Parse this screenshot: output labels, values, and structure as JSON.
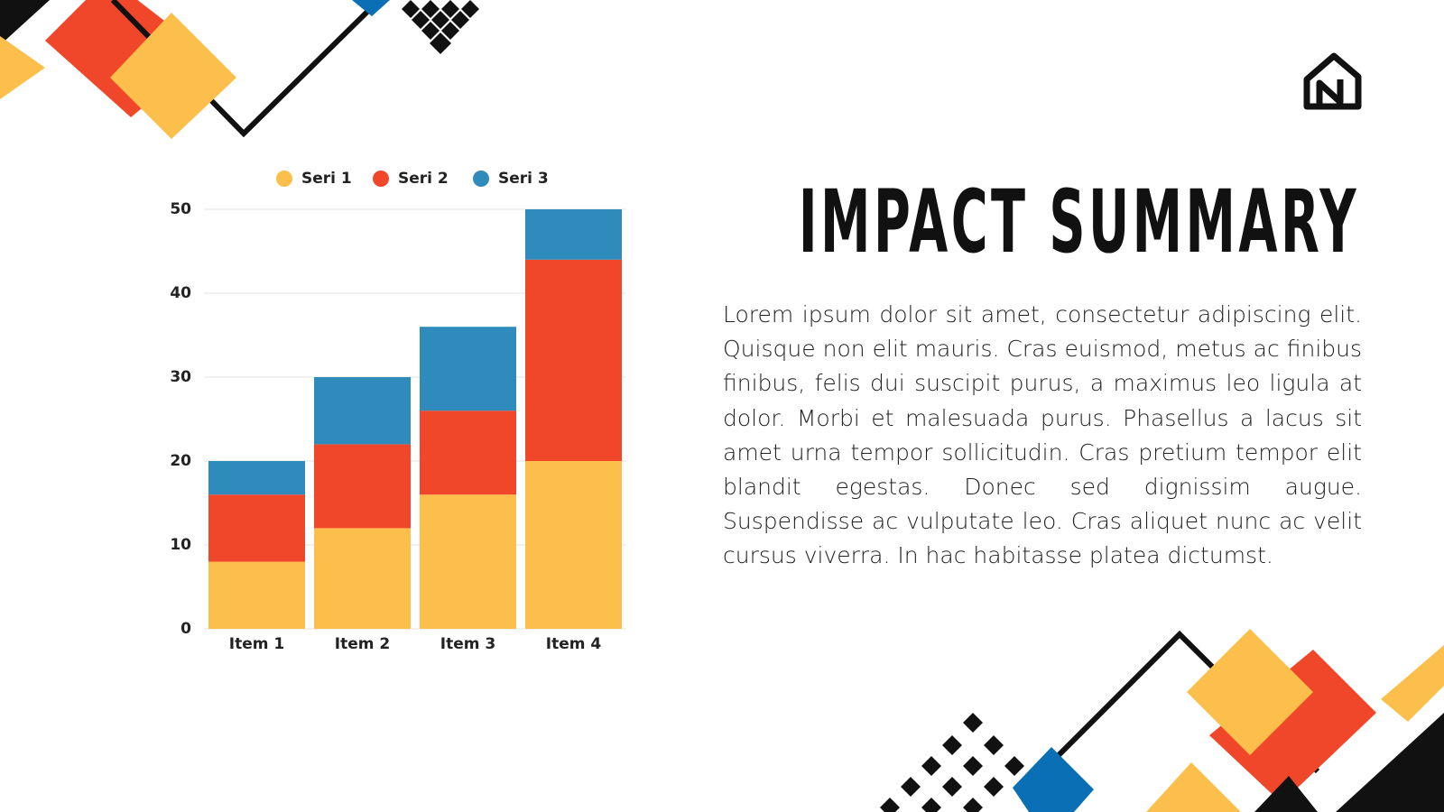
{
  "slide": {
    "title": "IMPACT SUMMARY",
    "body": "Lorem ipsum dolor sit amet, consectetur adipiscing elit. Quisque non elit mauris. Cras euismod, metus ac finibus finibus, felis dui suscipit purus, a maximus leo ligula at dolor. Morbi et malesuada purus. Phasellus a lacus sit amet urna tempor sollicitudin. Cras pretium tempor elit blandit egestas. Donec sed dignissim augue. Suspendisse ac vulputate leo. Cras aliquet nunc ac velit cursus viverra. In hac habitasse platea dictumst."
  },
  "chart_data": {
    "type": "bar",
    "stacked": true,
    "categories": [
      "Item 1",
      "Item 2",
      "Item 3",
      "Item 4"
    ],
    "series": [
      {
        "name": "Seri 1",
        "color": "#fdbf4b",
        "values": [
          8,
          12,
          16,
          20
        ]
      },
      {
        "name": "Seri 2",
        "color": "#f0462a",
        "values": [
          8,
          10,
          10,
          24
        ]
      },
      {
        "name": "Seri 3",
        "color": "#2e8bbb",
        "values": [
          4,
          8,
          10,
          6
        ]
      }
    ],
    "ylim": [
      0,
      50
    ],
    "yticks": [
      0,
      10,
      20,
      30,
      40,
      50
    ],
    "grid": true,
    "legend": "top"
  }
}
